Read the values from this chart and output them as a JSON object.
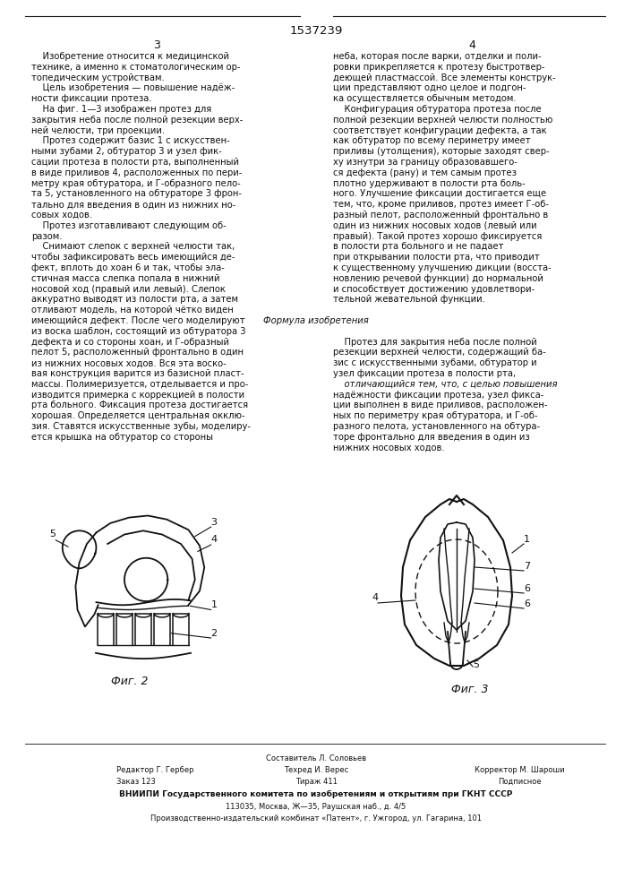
{
  "title_number": "1537239",
  "page_left": "3",
  "page_right": "4",
  "col1_lines": [
    "    Изобретение относится к медицинской",
    "технике, а именно к стоматологическим ор-",
    "топедическим устройствам.",
    "    Цель изобретения — повышение надёж-",
    "ности фиксации протеза.",
    "    На фиг. 1—3 изображен протез для",
    "закрытия неба после полной резекции верх-",
    "ней челюсти, три проекции.",
    "    Протез содержит базис 1 с искусствен-",
    "ными зубами 2, обтуратор 3 и узел фик-",
    "сации протеза в полости рта, выполненный",
    "в виде приливов 4, расположенных по пери-",
    "метру края обтуратора, и Г-образного пело-",
    "та 5, установленного на обтураторе 3 фрон-",
    "тально для введения в один из нижних но-",
    "совых ходов.",
    "    Протез изготавливают следующим об-",
    "разом.",
    "    Снимают слепок с верхней челюсти так,",
    "чтобы зафиксировать весь имеющийся де-",
    "фект, вплоть до хоан 6 и так, чтобы эла-",
    "стичная масса слепка попала в нижний",
    "носовой ход (правый или левый). Слепок",
    "аккуратно выводят из полости рта, а затем",
    "отливают модель, на которой чётко виден",
    "имеющийся дефект. После чего моделируют",
    "из воска шаблон, состоящий из обтуратора 3",
    "дефекта и со стороны хоан, и Г-образный",
    "пелот 5, расположенный фронтально в один",
    "из нижних носовых ходов. Вся эта воско-",
    "вая конструкция варится из базисной пласт-",
    "массы. Полимеризуется, отделывается и про-",
    "изводится примерка с коррекцией в полости",
    "рта больного. Фиксация протеза достигается",
    "хорошая. Определяется центральная окклю-",
    "зия. Ставятся искусственные зубы, моделиру-",
    "ется крышка на обтуратор со стороны"
  ],
  "col2_lines": [
    "неба, которая после варки, отделки и поли-",
    "ровки прикрепляется к протезу быстротвер-",
    "деющей пластмассой. Все элементы конструк-",
    "ции представляют одно целое и подгон-",
    "ка осуществляется обычным методом.",
    "    Конфигурация обтуратора протеза после",
    "полной резекции верхней челюсти полностью",
    "соответствует конфигурации дефекта, а так",
    "как обтуратор по всему периметру имеет",
    "приливы (утолщения), которые заходят свер-",
    "ху изнутри за границу образовавшего-",
    "ся дефекта (рану) и тем самым протез",
    "плотно удерживают в полости рта боль-",
    "ного. Улучшение фиксации достигается еще",
    "тем, что, кроме приливов, протез имеет Г-об-",
    "разный пелот, расположенный фронтально в",
    "один из нижних носовых ходов (левый или",
    "правый). Такой протез хорошо фиксируется",
    "в полости рта больного и не падает",
    "при открывании полости рта, что приводит",
    "к существенному улучшению дикции (восста-",
    "новлению речевой функции) до нормальной",
    "и способствует достижению удовлетвори-",
    "тельной жевательной функции.",
    "",
    "    Формула изобретения",
    "",
    "    Протез для закрытия неба после полной",
    "резекции верхней челюсти, содержащий ба-",
    "зис с искусственными зубами, обтуратор и",
    "узел фиксации протеза в полости рта,",
    "    отличающийся тем, что, с целью повышения",
    "надёжности фиксации протеза, узел фикса-",
    "ции выполнен в виде приливов, расположен-",
    "ных по периметру края обтуратора, и Г-об-",
    "разного пелота, установленного на обтура-",
    "торе фронтально для введения в один из",
    "нижних носовых ходов."
  ],
  "formula_idx": 25,
  "italic_idx": 31,
  "fig2_label": "Фиг. 2",
  "fig3_label": "Фиг. 3",
  "footer_sestavitel": "Составитель Л. Соловьев",
  "footer_row2": [
    "Редактор Г. Гербер",
    "Техред И. Верес",
    "Корректор М. Шароши"
  ],
  "footer_row3": [
    "Заказ 123",
    "Тираж 411",
    "Подписное"
  ],
  "footer_vniipи": "ВНИИПИ Государственного комитета по изобретениям и открытиям при ГКНТ СССР",
  "footer_addr1": "113035, Москва, Ж—35, Раушская наб., д. 4/5",
  "footer_addr2": "Производственно-издательский комбинат «Патент», г. Ужгород, ул. Гагарина, 101",
  "bg_color": "#ffffff",
  "text_color": "#111111",
  "line_color": "#111111"
}
